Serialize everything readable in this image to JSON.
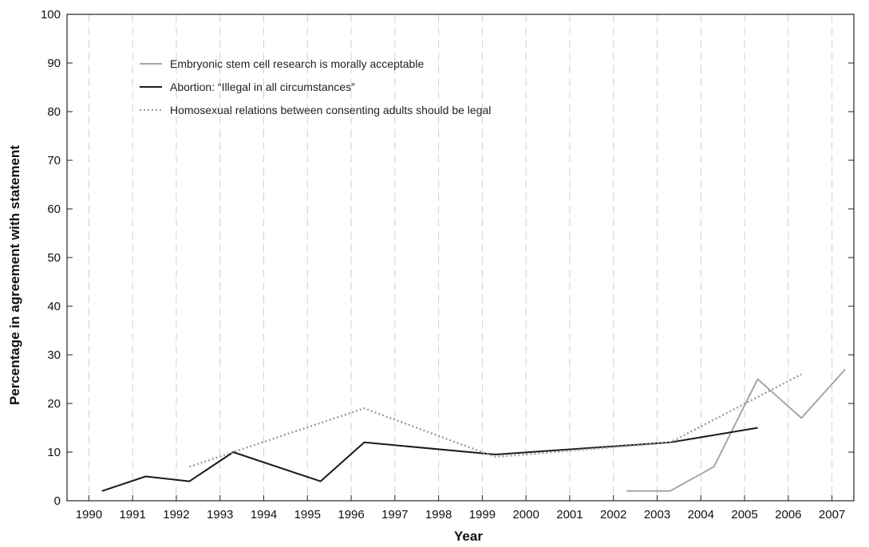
{
  "chart_data": {
    "type": "line",
    "xlabel": "Year",
    "ylabel": "Percentage in agreement with statement",
    "ylim": [
      0,
      100
    ],
    "yticks": [
      0,
      10,
      20,
      30,
      40,
      50,
      60,
      70,
      80,
      90,
      100
    ],
    "xticks": [
      1990,
      1991,
      1992,
      1993,
      1994,
      1995,
      1996,
      1997,
      1998,
      1999,
      2000,
      2001,
      2002,
      2003,
      2004,
      2005,
      2006,
      2007
    ],
    "xlim": [
      1989.5,
      2007.5
    ],
    "legend_position": "top-left",
    "grid": "dashed vertical",
    "series": [
      {
        "name": "Embryonic stem cell research is morally acceptable",
        "style": "solid",
        "color": "#a6a6a6",
        "x": [
          2002.3,
          2003.3,
          2004.3,
          2005.3,
          2006.3,
          2007.3
        ],
        "y": [
          2,
          2,
          7,
          25,
          17,
          27
        ]
      },
      {
        "name": "Abortion: “Illegal in all circumstances”",
        "style": "solid",
        "color": "#1a1a1a",
        "x": [
          1990.3,
          1991.3,
          1992.3,
          1993.3,
          1995.3,
          1996.3,
          1999.3,
          2003.3,
          2005.3
        ],
        "y": [
          2,
          5,
          4,
          10,
          4,
          12,
          9.5,
          12,
          15
        ]
      },
      {
        "name": "Homosexual relations between consenting adults should be legal",
        "style": "dotted",
        "color": "#9a9a9a",
        "x": [
          1992.3,
          1993.3,
          1996.3,
          1999.3,
          2003.3,
          2006.3
        ],
        "y": [
          7,
          10,
          19,
          9,
          12,
          26
        ]
      }
    ]
  }
}
